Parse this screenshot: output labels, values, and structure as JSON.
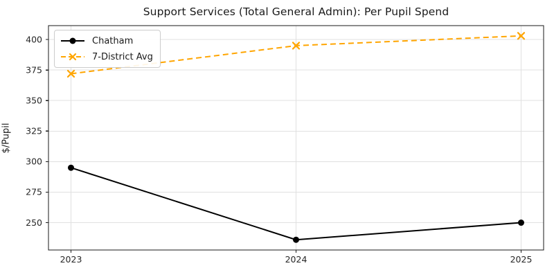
{
  "chart_data": {
    "type": "line",
    "title": "Support Services (Total General Admin): Per Pupil Spend",
    "xlabel": "",
    "ylabel": "$/Pupil",
    "x": [
      2023,
      2024,
      2025
    ],
    "x_tick_labels": [
      "2023",
      "2024",
      "2025"
    ],
    "series": [
      {
        "name": "Chatham",
        "color": "#000000",
        "line_style": "solid",
        "marker": "circle",
        "values": [
          295,
          236,
          250
        ]
      },
      {
        "name": "7-District Avg",
        "color": "#FFA500",
        "line_style": "dashed",
        "marker": "x",
        "values": [
          372,
          395,
          403
        ]
      }
    ],
    "yticks": [
      250,
      275,
      300,
      325,
      350,
      375,
      400
    ],
    "ylim": [
      227.6,
      411.4
    ],
    "xlim": [
      2022.9,
      2025.1
    ],
    "grid": true,
    "legend_position": "upper left",
    "background_color": "#ffffff",
    "grid_color": "#e0e0e0",
    "spine_color": "#1a1a1a",
    "tick_label_color": "#262626"
  }
}
